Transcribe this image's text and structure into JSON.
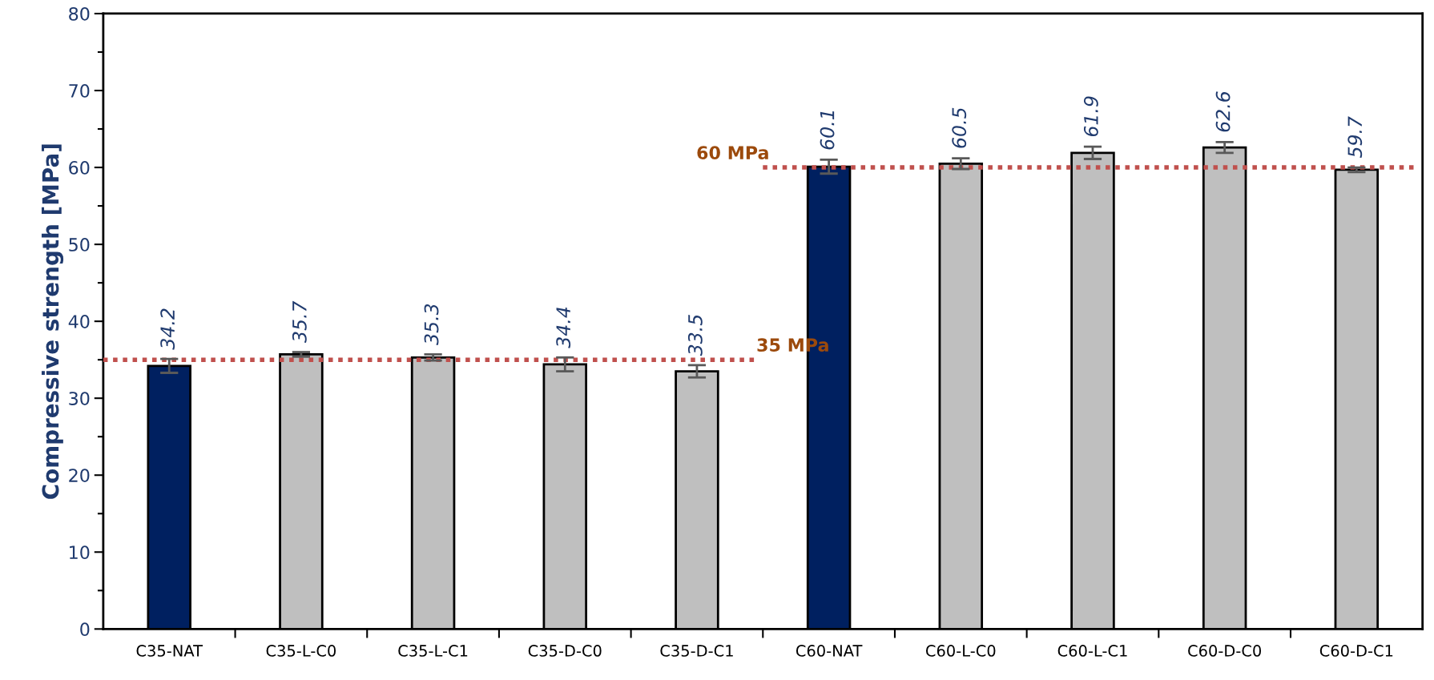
{
  "chart_data": {
    "type": "bar",
    "ylabel": "Compressive strength [MPa]",
    "categories": [
      "C35-NAT",
      "C35-L-C0",
      "C35-L-C1",
      "C35-D-C0",
      "C35-D-C1",
      "C60-NAT",
      "C60-L-C0",
      "C60-L-C1",
      "C60-D-C0",
      "C60-D-C1"
    ],
    "values": [
      34.2,
      35.7,
      35.3,
      34.4,
      33.5,
      60.1,
      60.5,
      61.9,
      62.6,
      59.7
    ],
    "colors": [
      "#002060",
      "#bfbfbf",
      "#bfbfbf",
      "#bfbfbf",
      "#bfbfbf",
      "#002060",
      "#bfbfbf",
      "#bfbfbf",
      "#bfbfbf",
      "#bfbfbf"
    ],
    "errors": [
      0.9,
      0.3,
      0.4,
      0.9,
      0.8,
      0.9,
      0.7,
      0.8,
      0.7,
      0.3
    ],
    "data_labels": true,
    "ylim": [
      0,
      80
    ],
    "yticks": [
      0,
      10,
      20,
      30,
      40,
      50,
      60,
      70,
      80
    ],
    "ref_lines": [
      {
        "axis": "y",
        "value": 35,
        "label": "35 MPa",
        "color": "#c0504d",
        "line_style": "dotted"
      },
      {
        "axis": "y",
        "value": 60,
        "label": "60 MPa",
        "color": "#c0504d",
        "line_style": "dotted"
      }
    ],
    "grid": false
  }
}
